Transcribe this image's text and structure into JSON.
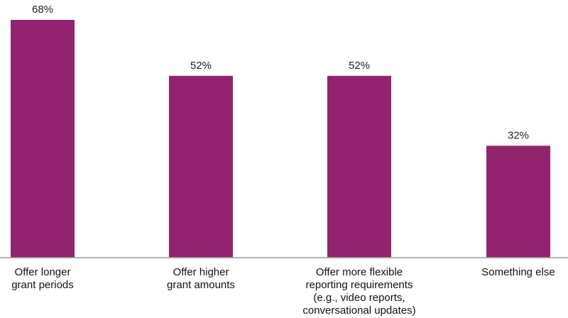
{
  "chart_data": {
    "type": "bar",
    "categories": [
      [
        "Offer longer",
        "grant periods"
      ],
      [
        "Offer higher",
        "grant amounts"
      ],
      [
        "Offer more flexible",
        "reporting requirements",
        "(e.g., video reports,",
        "conversational updates)"
      ],
      [
        "Something else"
      ]
    ],
    "values": [
      68,
      52,
      52,
      32
    ],
    "value_labels": [
      "68%",
      "52%",
      "52%",
      "32%"
    ],
    "ylim": [
      0,
      68
    ],
    "grid": false,
    "bar_color": "#92246f",
    "axis_color": "#9a9a9a"
  }
}
